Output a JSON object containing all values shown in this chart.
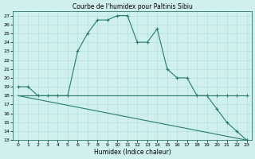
{
  "title": "Courbe de l'humidex pour Paltinis Sibiu",
  "xlabel": "Humidex (Indice chaleur)",
  "xlim": [
    -0.5,
    23.5
  ],
  "ylim": [
    13,
    27.5
  ],
  "yticks": [
    13,
    14,
    15,
    16,
    17,
    18,
    19,
    20,
    21,
    22,
    23,
    24,
    25,
    26,
    27
  ],
  "xticks": [
    0,
    1,
    2,
    3,
    4,
    5,
    6,
    7,
    8,
    9,
    10,
    11,
    12,
    13,
    14,
    15,
    16,
    17,
    18,
    19,
    20,
    21,
    22,
    23
  ],
  "line_color": "#2a7a6e",
  "bg_color": "#cff0ec",
  "grid_color": "#aaddd7",
  "line1_x": [
    0,
    1,
    2,
    3,
    4,
    5,
    6,
    7,
    8,
    9,
    10,
    11,
    12,
    13,
    14,
    15,
    16,
    17,
    18,
    19,
    20,
    21,
    22,
    23
  ],
  "line1_y": [
    19,
    19,
    18,
    18,
    18,
    18,
    23,
    25,
    26.5,
    26.5,
    27,
    27,
    24,
    24,
    25.5,
    21,
    20,
    20,
    18,
    18,
    16.5,
    15,
    14,
    13
  ],
  "line2_x": [
    0,
    1,
    2,
    3,
    4,
    5,
    6,
    7,
    8,
    9,
    10,
    11,
    12,
    13,
    14,
    15,
    16,
    17,
    18,
    19,
    20,
    21,
    22,
    23
  ],
  "line2_y": [
    18,
    18,
    18,
    18,
    18,
    18,
    18,
    18,
    18,
    18,
    18,
    18,
    18,
    18,
    18,
    18,
    18,
    18,
    18,
    18,
    18,
    18,
    18,
    18
  ],
  "line3_x": [
    0,
    23
  ],
  "line3_y": [
    18,
    13
  ],
  "marker1_x": [
    0,
    1,
    2,
    3,
    4,
    5,
    6,
    7,
    8,
    9,
    10,
    11,
    12,
    13,
    14,
    15,
    16,
    17,
    18,
    19,
    20,
    21,
    22,
    23
  ],
  "marker1_y": [
    19,
    19,
    18,
    18,
    18,
    18,
    23,
    25,
    26.5,
    26.5,
    27,
    27,
    24,
    24,
    25.5,
    21,
    20,
    20,
    18,
    18,
    16.5,
    15,
    14,
    13
  ],
  "marker2_x": [
    19,
    20,
    21,
    22,
    23
  ],
  "marker2_y": [
    18,
    18,
    18,
    18,
    18
  ]
}
